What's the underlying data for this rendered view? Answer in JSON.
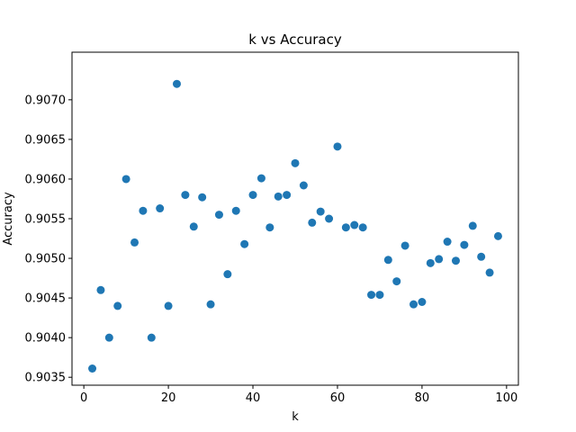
{
  "chart_data": {
    "type": "scatter",
    "title": "k vs Accuracy",
    "xlabel": "k",
    "ylabel": "Accuracy",
    "xlim": [
      -2.8,
      102.8
    ],
    "ylim": [
      0.9034,
      0.9076
    ],
    "xticks": [
      0,
      20,
      40,
      60,
      80,
      100
    ],
    "xtick_labels": [
      "0",
      "20",
      "40",
      "60",
      "80",
      "100"
    ],
    "yticks": [
      0.9035,
      0.904,
      0.9045,
      0.905,
      0.9055,
      0.906,
      0.9065,
      0.907
    ],
    "ytick_labels": [
      "0.9035",
      "0.9040",
      "0.9045",
      "0.9050",
      "0.9055",
      "0.9060",
      "0.9065",
      "0.9070"
    ],
    "grid": false,
    "marker_color": "#1f77b4",
    "series": [
      {
        "x": [
          2,
          4,
          6,
          8,
          10,
          12,
          14,
          16,
          18,
          20,
          22,
          24,
          26,
          28,
          30,
          32,
          34,
          36,
          38,
          40,
          42,
          44,
          46,
          48,
          50,
          52,
          54,
          56,
          58,
          60,
          62,
          64,
          66,
          68,
          70,
          72,
          74,
          76,
          78,
          80,
          82,
          84,
          86,
          88,
          90,
          92,
          94,
          96,
          98
        ],
        "y": [
          0.90361,
          0.9046,
          0.904,
          0.9044,
          0.906,
          0.9052,
          0.9056,
          0.904,
          0.90563,
          0.9044,
          0.9072,
          0.9058,
          0.9054,
          0.90577,
          0.90442,
          0.90555,
          0.9048,
          0.9056,
          0.90518,
          0.9058,
          0.90601,
          0.90539,
          0.90578,
          0.9058,
          0.9062,
          0.90592,
          0.90545,
          0.90559,
          0.9055,
          0.90641,
          0.90539,
          0.90542,
          0.90539,
          0.90454,
          0.90454,
          0.90498,
          0.90471,
          0.90516,
          0.90442,
          0.90445,
          0.90494,
          0.90499,
          0.90521,
          0.90497,
          0.90517,
          0.90541,
          0.90502,
          0.90482,
          0.90528
        ]
      }
    ]
  }
}
